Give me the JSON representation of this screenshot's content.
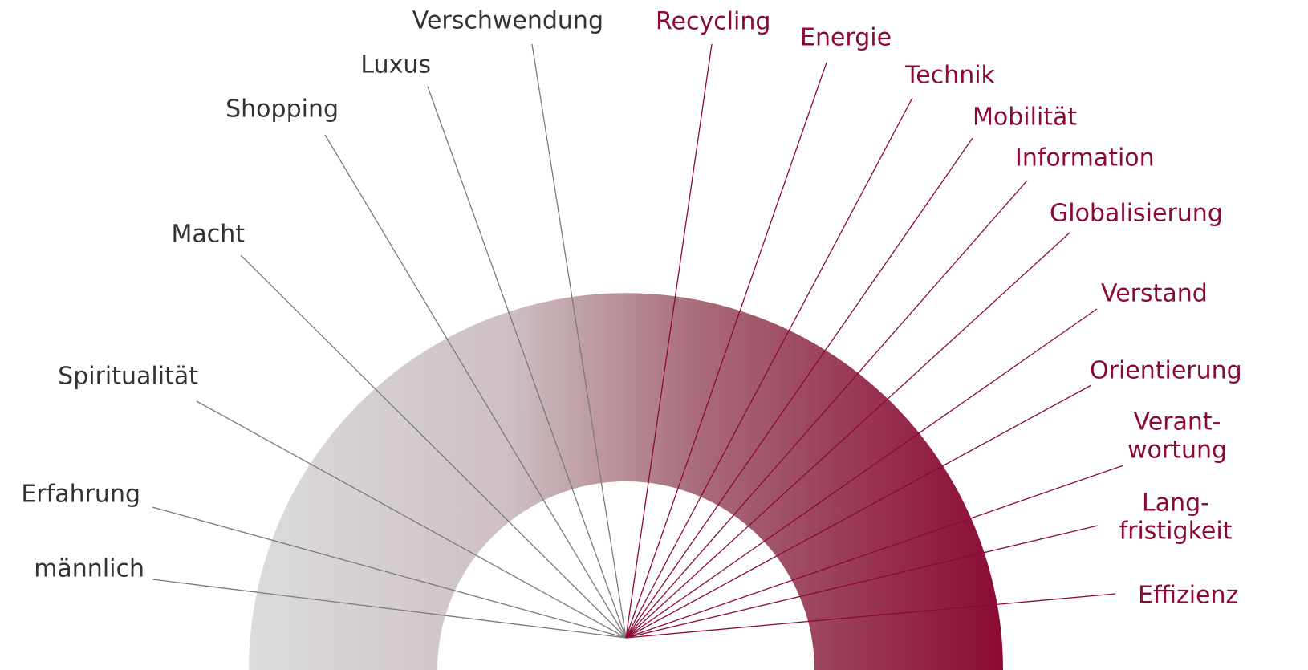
{
  "left": [
    {
      "lines": [
        "männlich"
      ]
    },
    {
      "lines": [
        "Erfahrung"
      ]
    },
    {
      "lines": [
        "Spiritualität"
      ]
    },
    {
      "lines": [
        "Macht"
      ]
    },
    {
      "lines": [
        "Shopping"
      ]
    },
    {
      "lines": [
        "Luxus"
      ]
    },
    {
      "lines": [
        "Verschwendung"
      ]
    }
  ],
  "right": [
    {
      "lines": [
        "Recycling"
      ]
    },
    {
      "lines": [
        "Energie"
      ]
    },
    {
      "lines": [
        "Technik"
      ]
    },
    {
      "lines": [
        "Mobilität"
      ]
    },
    {
      "lines": [
        "Information"
      ]
    },
    {
      "lines": [
        "Globalisierung"
      ]
    },
    {
      "lines": [
        "Verstand"
      ]
    },
    {
      "lines": [
        "Orientierung"
      ]
    },
    {
      "lines": [
        "Verant-",
        "wortung"
      ]
    },
    {
      "lines": [
        "Lang-",
        "fristigkeit"
      ]
    },
    {
      "lines": [
        "Effizienz"
      ]
    }
  ]
}
